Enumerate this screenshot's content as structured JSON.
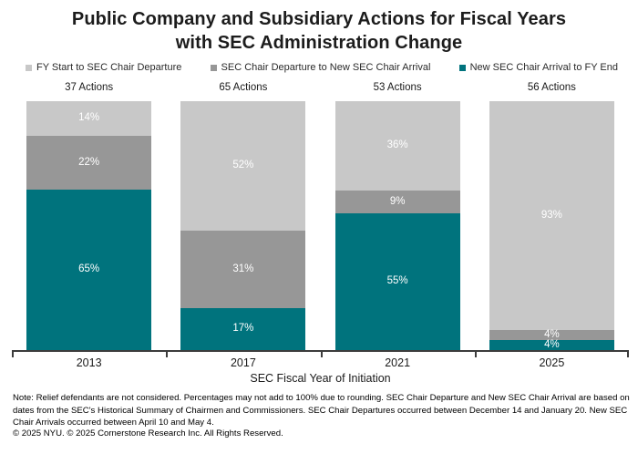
{
  "title": {
    "line1": "Public Company and Subsidiary Actions for Fiscal Years",
    "line2": "with SEC Administration Change"
  },
  "legend": [
    {
      "label": "FY Start to SEC Chair Departure",
      "color": "#c8c8c8"
    },
    {
      "label": "SEC Chair Departure to New SEC Chair Arrival",
      "color": "#979797"
    },
    {
      "label": "New SEC Chair Arrival to FY End",
      "color": "#00737d"
    }
  ],
  "chart_data": {
    "type": "bar",
    "stacked": true,
    "value_format": "percent",
    "categories": [
      "2013",
      "2017",
      "2021",
      "2025"
    ],
    "category_totals": [
      "37 Actions",
      "65 Actions",
      "53 Actions",
      "56 Actions"
    ],
    "series": [
      {
        "name": "FY Start to SEC Chair Departure",
        "color": "#c8c8c8",
        "values": [
          14,
          52,
          36,
          93
        ]
      },
      {
        "name": "SEC Chair Departure to New SEC Chair Arrival",
        "color": "#979797",
        "values": [
          22,
          31,
          9,
          4
        ]
      },
      {
        "name": "New SEC Chair Arrival to FY End",
        "color": "#00737d",
        "values": [
          65,
          17,
          55,
          4
        ]
      }
    ],
    "xlabel": "SEC Fiscal Year of Initiation",
    "ylim": [
      0,
      100
    ],
    "grid": false,
    "legend_position": "top",
    "axis_color": "#3c3c3c",
    "label_color": "#ffffff"
  },
  "notes": {
    "text": "Note: Relief defendants are not considered. Percentages may not add to 100% due to rounding. SEC Chair Departure and New SEC Chair Arrival are based on dates from the SEC's Historical Summary of Chairmen and Commissioners. SEC Chair Departures occurred between December 14 and January 20. New SEC Chair Arrivals occurred between April 10 and May 4.",
    "copyright": "© 2025 NYU. © 2025 Cornerstone Research Inc. All Rights Reserved."
  }
}
